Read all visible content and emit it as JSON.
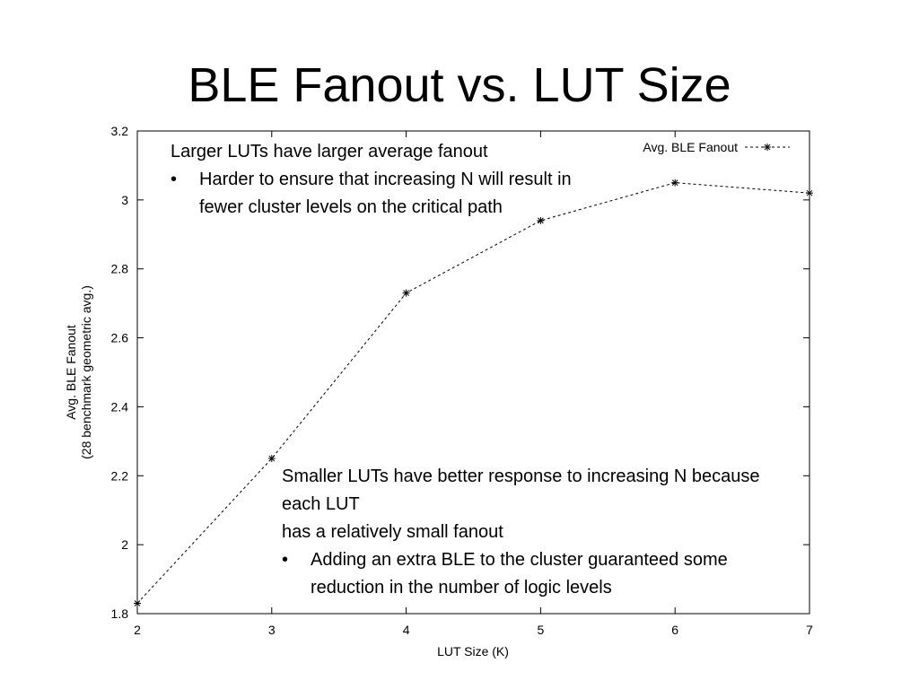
{
  "slide": {
    "title": "BLE Fanout vs. LUT Size"
  },
  "notes": {
    "note1": {
      "heading": "Larger LUTs have larger average fanout",
      "bullets": [
        "Harder to ensure that increasing N will result in fewer cluster levels on the critical path"
      ]
    },
    "note2": {
      "lines": [
        "Smaller LUTs have better response to increasing N because each LUT",
        "has a relatively small fanout"
      ],
      "bullets": [
        "Adding an extra BLE to the cluster guaranteed some reduction in the number of logic levels"
      ]
    }
  },
  "chart_data": {
    "type": "line",
    "x": [
      2,
      3,
      4,
      5,
      6,
      7
    ],
    "series": [
      {
        "name": "Avg. BLE Fanout",
        "values": [
          1.83,
          2.25,
          2.73,
          2.94,
          3.05,
          3.02
        ]
      }
    ],
    "xlabel": "LUT Size (K)",
    "ylabel": "Avg. BLE Fanout",
    "ylabel2": "(28 benchmark geometric avg.)",
    "xlim": [
      2,
      7
    ],
    "ylim": [
      1.8,
      3.2
    ],
    "xticks": [
      "2",
      "3",
      "4",
      "5",
      "6",
      "7"
    ],
    "yticks": [
      "1.8",
      "2",
      "2.2",
      "2.4",
      "2.6",
      "2.8",
      "3",
      "3.2"
    ],
    "grid": false,
    "legend_position": "top-right",
    "colors": {
      "line": "#000000",
      "axis": "#000000"
    }
  }
}
